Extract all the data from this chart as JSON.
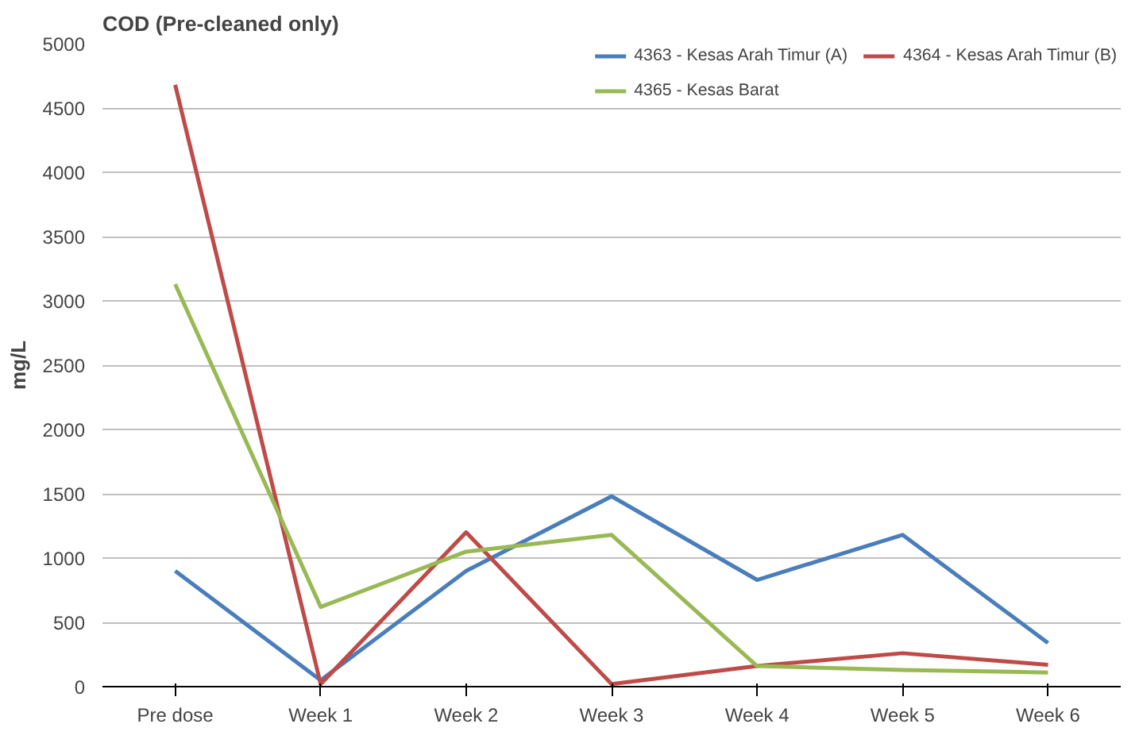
{
  "chart_data": {
    "type": "line",
    "title": "COD (Pre-cleaned only)",
    "ylabel": "mg/L",
    "categories": [
      "Pre dose",
      "Week 1",
      "Week 2",
      "Week 3",
      "Week 4",
      "Week 5",
      "Week 6"
    ],
    "ylim": [
      0,
      5000
    ],
    "yticks": [
      0,
      500,
      1000,
      1500,
      2000,
      2500,
      3000,
      3500,
      4000,
      4500,
      5000
    ],
    "grid": "y",
    "legend": "top right",
    "marker": "none",
    "line_style": "solid",
    "series": [
      {
        "name": "4363 - Kesas Arah Timur (A)",
        "color": "#4a7ebb",
        "values": [
          900,
          50,
          900,
          1480,
          830,
          1180,
          340
        ]
      },
      {
        "name": "4364 - Kesas Arah Timur (B)",
        "color": "#be4b48",
        "values": [
          4680,
          20,
          1200,
          20,
          160,
          260,
          170
        ]
      },
      {
        "name": "4365 - Kesas Barat",
        "color": "#98b954",
        "values": [
          3130,
          620,
          1050,
          1180,
          160,
          130,
          110
        ]
      }
    ]
  }
}
